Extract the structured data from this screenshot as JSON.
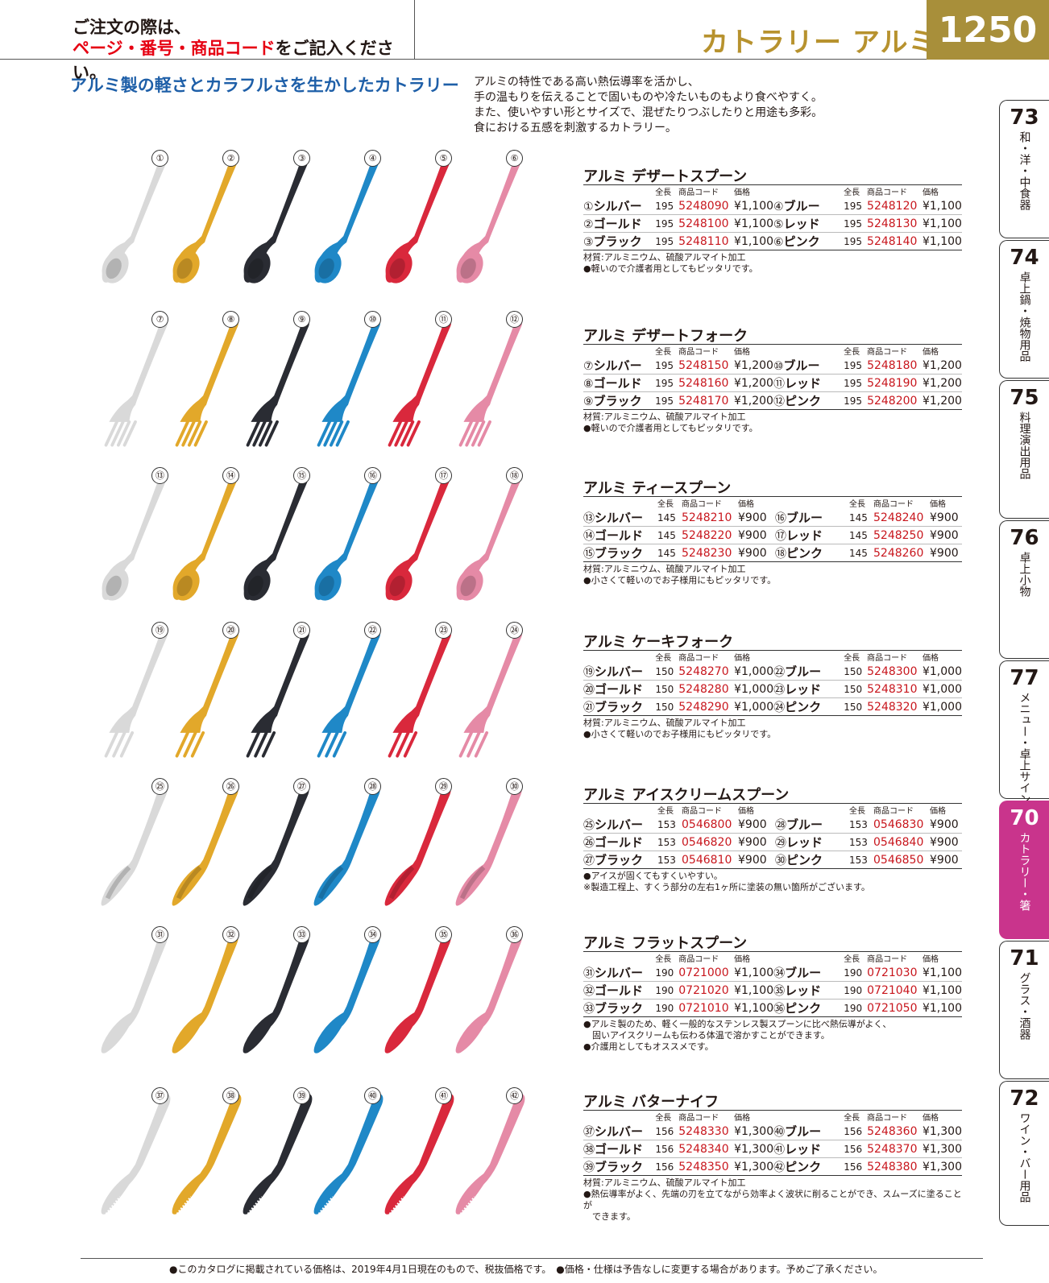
{
  "header": {
    "notice_line1": "ご注文の際は、",
    "notice_line2_red": "ページ・番号・商品コード",
    "notice_line2_rest": "をご記入ください。",
    "category": "カトラリー アルミ",
    "page_number": "1250"
  },
  "intro": {
    "title": "アルミ製の軽さとカラフルさを生かしたカトラリー",
    "lines": [
      "アルミの特性である高い熱伝導率を活かし、",
      "手の温もりを伝えることで固いものや冷たいものもより食べやすく。",
      "また、使いやすい形とサイズで、混ぜたりつぶしたりと用途も多彩。",
      "食における五感を刺激するカトラリー。"
    ]
  },
  "colors": {
    "silver": "#d9d9d9",
    "gold": "#e2a82a",
    "black": "#2a2c33",
    "blue": "#1f88c7",
    "red": "#d9283c",
    "pink": "#e58aa6",
    "accent_tab": "#c9348c"
  },
  "tabs": [
    {
      "num": "73",
      "label": "和・洋・中食器"
    },
    {
      "num": "74",
      "label": "卓上鍋・焼物用品"
    },
    {
      "num": "75",
      "label": "料理演出用品"
    },
    {
      "num": "76",
      "label": "卓上小物"
    },
    {
      "num": "77",
      "label": "メニュー・卓上サイン"
    },
    {
      "num": "70",
      "label": "カトラリー・箸",
      "active": true
    },
    {
      "num": "71",
      "label": "グラス・酒器"
    },
    {
      "num": "72",
      "label": "ワイン・バー用品"
    }
  ],
  "col_headers": {
    "len": "全長",
    "code": "商品コード",
    "price": "価格"
  },
  "sections": [
    {
      "title": "アルミ デザートスプーン",
      "shape": "spoon",
      "rows": [
        [
          {
            "n": "①",
            "name": "シルバー",
            "len": "195",
            "code": "5248090",
            "price": "¥1,100"
          },
          {
            "n": "④",
            "name": "ブルー",
            "len": "195",
            "code": "5248120",
            "price": "¥1,100"
          }
        ],
        [
          {
            "n": "②",
            "name": "ゴールド",
            "len": "195",
            "code": "5248100",
            "price": "¥1,100"
          },
          {
            "n": "⑤",
            "name": "レッド",
            "len": "195",
            "code": "5248130",
            "price": "¥1,100"
          }
        ],
        [
          {
            "n": "③",
            "name": "ブラック",
            "len": "195",
            "code": "5248110",
            "price": "¥1,100"
          },
          {
            "n": "⑥",
            "name": "ピンク",
            "len": "195",
            "code": "5248140",
            "price": "¥1,100"
          }
        ]
      ],
      "notes": [
        "材質:アルミニウム、硫酸アルマイト加工",
        "●軽いので介護者用としてもピッタリです。"
      ]
    },
    {
      "title": "アルミ デザートフォーク",
      "shape": "fork",
      "rows": [
        [
          {
            "n": "⑦",
            "name": "シルバー",
            "len": "195",
            "code": "5248150",
            "price": "¥1,200"
          },
          {
            "n": "⑩",
            "name": "ブルー",
            "len": "195",
            "code": "5248180",
            "price": "¥1,200"
          }
        ],
        [
          {
            "n": "⑧",
            "name": "ゴールド",
            "len": "195",
            "code": "5248160",
            "price": "¥1,200"
          },
          {
            "n": "⑪",
            "name": "レッド",
            "len": "195",
            "code": "5248190",
            "price": "¥1,200"
          }
        ],
        [
          {
            "n": "⑨",
            "name": "ブラック",
            "len": "195",
            "code": "5248170",
            "price": "¥1,200"
          },
          {
            "n": "⑫",
            "name": "ピンク",
            "len": "195",
            "code": "5248200",
            "price": "¥1,200"
          }
        ]
      ],
      "notes": [
        "材質:アルミニウム、硫酸アルマイト加工",
        "●軽いので介護者用としてもピッタリです。"
      ]
    },
    {
      "title": "アルミ ティースプーン",
      "shape": "spoon",
      "rows": [
        [
          {
            "n": "⑬",
            "name": "シルバー",
            "len": "145",
            "code": "5248210",
            "price": "¥900"
          },
          {
            "n": "⑯",
            "name": "ブルー",
            "len": "145",
            "code": "5248240",
            "price": "¥900"
          }
        ],
        [
          {
            "n": "⑭",
            "name": "ゴールド",
            "len": "145",
            "code": "5248220",
            "price": "¥900"
          },
          {
            "n": "⑰",
            "name": "レッド",
            "len": "145",
            "code": "5248250",
            "price": "¥900"
          }
        ],
        [
          {
            "n": "⑮",
            "name": "ブラック",
            "len": "145",
            "code": "5248230",
            "price": "¥900"
          },
          {
            "n": "⑱",
            "name": "ピンク",
            "len": "145",
            "code": "5248260",
            "price": "¥900"
          }
        ]
      ],
      "notes": [
        "材質:アルミニウム、硫酸アルマイト加工",
        "●小さくて軽いのでお子様用にもピッタリです。"
      ]
    },
    {
      "title": "アルミ ケーキフォーク",
      "shape": "cakefork",
      "rows": [
        [
          {
            "n": "⑲",
            "name": "シルバー",
            "len": "150",
            "code": "5248270",
            "price": "¥1,000"
          },
          {
            "n": "㉒",
            "name": "ブルー",
            "len": "150",
            "code": "5248300",
            "price": "¥1,000"
          }
        ],
        [
          {
            "n": "⑳",
            "name": "ゴールド",
            "len": "150",
            "code": "5248280",
            "price": "¥1,000"
          },
          {
            "n": "㉓",
            "name": "レッド",
            "len": "150",
            "code": "5248310",
            "price": "¥1,000"
          }
        ],
        [
          {
            "n": "㉑",
            "name": "ブラック",
            "len": "150",
            "code": "5248290",
            "price": "¥1,000"
          },
          {
            "n": "㉔",
            "name": "ピンク",
            "len": "150",
            "code": "5248320",
            "price": "¥1,000"
          }
        ]
      ],
      "notes": [
        "材質:アルミニウム、硫酸アルマイト加工",
        "●小さくて軽いのでお子様用にもピッタリです。"
      ]
    },
    {
      "title": "アルミ アイスクリームスプーン",
      "shape": "ice",
      "rows": [
        [
          {
            "n": "㉕",
            "name": "シルバー",
            "len": "153",
            "code": "0546800",
            "price": "¥900"
          },
          {
            "n": "㉘",
            "name": "ブルー",
            "len": "153",
            "code": "0546830",
            "price": "¥900"
          }
        ],
        [
          {
            "n": "㉖",
            "name": "ゴールド",
            "len": "153",
            "code": "0546820",
            "price": "¥900"
          },
          {
            "n": "㉙",
            "name": "レッド",
            "len": "153",
            "code": "0546840",
            "price": "¥900"
          }
        ],
        [
          {
            "n": "㉗",
            "name": "ブラック",
            "len": "153",
            "code": "0546810",
            "price": "¥900"
          },
          {
            "n": "㉚",
            "name": "ピンク",
            "len": "153",
            "code": "0546850",
            "price": "¥900"
          }
        ]
      ],
      "notes": [
        "●アイスが固くてもすくいやすい。",
        "※製造工程上、すくう部分の左右1ヶ所に塗装の無い箇所がございます。"
      ]
    },
    {
      "title": "アルミ フラットスプーン",
      "shape": "flat",
      "rows": [
        [
          {
            "n": "㉛",
            "name": "シルバー",
            "len": "190",
            "code": "0721000",
            "price": "¥1,100"
          },
          {
            "n": "㉞",
            "name": "ブルー",
            "len": "190",
            "code": "0721030",
            "price": "¥1,100"
          }
        ],
        [
          {
            "n": "㉜",
            "name": "ゴールド",
            "len": "190",
            "code": "0721020",
            "price": "¥1,100"
          },
          {
            "n": "㉟",
            "name": "レッド",
            "len": "190",
            "code": "0721040",
            "price": "¥1,100"
          }
        ],
        [
          {
            "n": "㉝",
            "name": "ブラック",
            "len": "190",
            "code": "0721010",
            "price": "¥1,100"
          },
          {
            "n": "㊱",
            "name": "ピンク",
            "len": "190",
            "code": "0721050",
            "price": "¥1,100"
          }
        ]
      ],
      "notes": [
        "●アルミ製のため、軽く一般的なステンレス製スプーンに比べ熱伝導がよく、",
        "　固いアイスクリームも伝わる体温で溶かすことができます。",
        "●介護用としてもオススメです。"
      ]
    },
    {
      "title": "アルミ バターナイフ",
      "shape": "knife",
      "rows": [
        [
          {
            "n": "㊲",
            "name": "シルバー",
            "len": "156",
            "code": "5248330",
            "price": "¥1,300"
          },
          {
            "n": "㊵",
            "name": "ブルー",
            "len": "156",
            "code": "5248360",
            "price": "¥1,300"
          }
        ],
        [
          {
            "n": "㊳",
            "name": "ゴールド",
            "len": "156",
            "code": "5248340",
            "price": "¥1,300"
          },
          {
            "n": "㊶",
            "name": "レッド",
            "len": "156",
            "code": "5248370",
            "price": "¥1,300"
          }
        ],
        [
          {
            "n": "㊴",
            "name": "ブラック",
            "len": "156",
            "code": "5248350",
            "price": "¥1,300"
          },
          {
            "n": "㊷",
            "name": "ピンク",
            "len": "156",
            "code": "5248380",
            "price": "¥1,300"
          }
        ]
      ],
      "notes": [
        "材質:アルミニウム、硫酸アルマイト加工",
        "●熱伝導率がよく、先端の刃を立てながら効率よく波状に削ることができ、スムーズに塗ることが",
        "　できます。"
      ]
    }
  ],
  "item_numbers": [
    [
      "①",
      "②",
      "③",
      "④",
      "⑤",
      "⑥"
    ],
    [
      "⑦",
      "⑧",
      "⑨",
      "⑩",
      "⑪",
      "⑫"
    ],
    [
      "⑬",
      "⑭",
      "⑮",
      "⑯",
      "⑰",
      "⑱"
    ],
    [
      "⑲",
      "⑳",
      "㉑",
      "㉒",
      "㉓",
      "㉔"
    ],
    [
      "㉕",
      "㉖",
      "㉗",
      "㉘",
      "㉙",
      "㉚"
    ],
    [
      "㉛",
      "㉜",
      "㉝",
      "㉞",
      "㉟",
      "㊱"
    ],
    [
      "㊲",
      "㊳",
      "㊴",
      "㊵",
      "㊶",
      "㊷"
    ]
  ],
  "footer": "●このカタログに掲載されている価格は、2019年4月1日現在のもので、税抜価格です。　●価格・仕様は予告なしに変更する場合があります。予めご了承ください。"
}
